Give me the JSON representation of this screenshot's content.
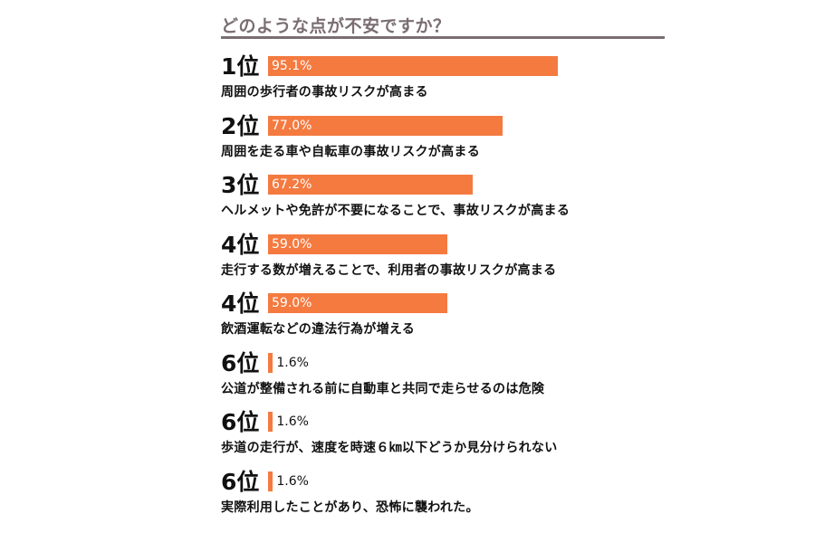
{
  "chart_data": {
    "type": "bar",
    "title": "どのような点が不安ですか？",
    "bar_color": "#f47a40",
    "title_color": "#7a6e72",
    "items": [
      {
        "rank": "1位",
        "value": 95.1,
        "value_label": "95.1%",
        "category": "周囲の歩行者の事故リスクが高まる"
      },
      {
        "rank": "2位",
        "value": 77.0,
        "value_label": "77.0%",
        "category": "周囲を走る車や自転車の事故リスクが高まる"
      },
      {
        "rank": "3位",
        "value": 67.2,
        "value_label": "67.2%",
        "category": "ヘルメットや免許が不要になることで、事故リスクが高まる"
      },
      {
        "rank": "4位",
        "value": 59.0,
        "value_label": "59.0%",
        "category": "走行する数が増えることで、利用者の事故リスクが高まる"
      },
      {
        "rank": "4位",
        "value": 59.0,
        "value_label": "59.0%",
        "category": "飲酒運転などの違法行為が増える"
      },
      {
        "rank": "6位",
        "value": 1.6,
        "value_label": "1.6%",
        "category": "公道が整備される前に自動車と共同で走らせるのは危険"
      },
      {
        "rank": "6位",
        "value": 1.6,
        "value_label": "1.6%",
        "category": "歩道の走行が、速度を時速６㎞以下どうか見分けられない"
      },
      {
        "rank": "6位",
        "value": 1.6,
        "value_label": "1.6%",
        "category": "実際利用したことがあり、恐怖に襲われた。"
      }
    ]
  }
}
